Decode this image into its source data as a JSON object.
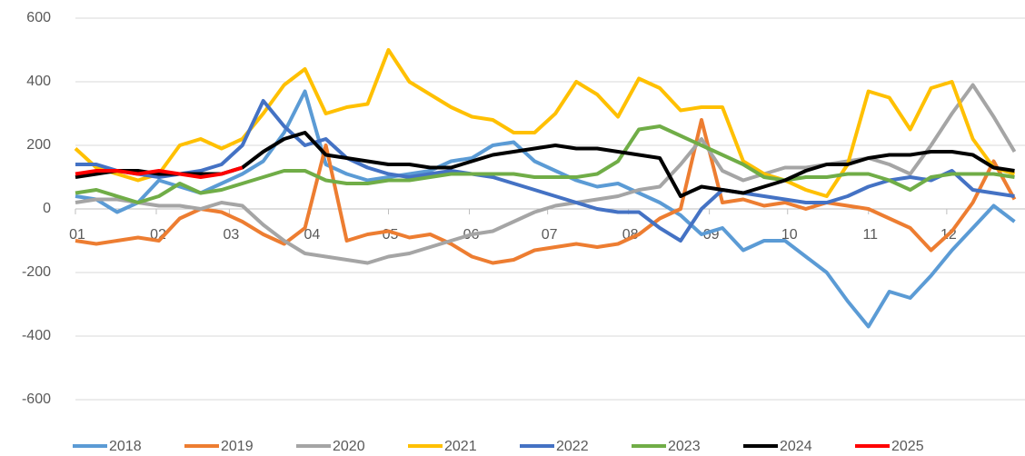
{
  "chart_data": {
    "type": "line",
    "x": [
      0,
      8,
      16,
      24,
      32,
      40,
      48,
      56,
      64,
      72,
      80,
      88,
      96,
      104,
      112,
      120,
      128,
      136,
      144,
      152,
      160,
      168,
      176,
      184,
      192,
      200,
      208,
      216,
      224,
      232,
      240,
      248,
      256,
      264,
      272,
      280,
      288,
      296,
      304,
      312,
      320,
      328,
      336,
      344,
      352,
      360
    ],
    "xlim": [
      0,
      364
    ],
    "xticks": [
      {
        "value": 0,
        "label": "01"
      },
      {
        "value": 31,
        "label": "02"
      },
      {
        "value": 59,
        "label": "03"
      },
      {
        "value": 90,
        "label": "04"
      },
      {
        "value": 120,
        "label": "05"
      },
      {
        "value": 151,
        "label": "06"
      },
      {
        "value": 181,
        "label": "07"
      },
      {
        "value": 212,
        "label": "08"
      },
      {
        "value": 243,
        "label": "09"
      },
      {
        "value": 273,
        "label": "10"
      },
      {
        "value": 304,
        "label": "11"
      },
      {
        "value": 334,
        "label": "12"
      }
    ],
    "ylim": [
      -600,
      600
    ],
    "yticks": [
      -600,
      -400,
      -200,
      0,
      200,
      400,
      600
    ],
    "grid": true,
    "series": [
      {
        "name": "2018",
        "color": "#5b9bd5",
        "values": [
          40,
          30,
          -10,
          20,
          90,
          70,
          50,
          80,
          110,
          150,
          240,
          370,
          140,
          110,
          90,
          100,
          110,
          120,
          150,
          160,
          200,
          210,
          150,
          120,
          90,
          70,
          80,
          50,
          20,
          -20,
          -80,
          -60,
          -130,
          -100,
          -100,
          -150,
          -200,
          -290,
          -370,
          -260,
          -280,
          -210,
          -130,
          -60,
          10,
          -40
        ]
      },
      {
        "name": "2019",
        "color": "#ed7d31",
        "values": [
          -100,
          -110,
          -100,
          -90,
          -100,
          -30,
          0,
          -10,
          -40,
          -80,
          -110,
          -60,
          200,
          -100,
          -80,
          -70,
          -90,
          -80,
          -110,
          -150,
          -170,
          -160,
          -130,
          -120,
          -110,
          -120,
          -110,
          -80,
          -30,
          0,
          280,
          20,
          30,
          10,
          20,
          0,
          20,
          10,
          0,
          -30,
          -60,
          -130,
          -70,
          20,
          150,
          30
        ]
      },
      {
        "name": "2020",
        "color": "#a5a5a5",
        "values": [
          20,
          30,
          30,
          20,
          10,
          10,
          0,
          20,
          10,
          -50,
          -100,
          -140,
          -150,
          -160,
          -170,
          -150,
          -140,
          -120,
          -100,
          -80,
          -70,
          -40,
          -10,
          10,
          20,
          30,
          40,
          60,
          70,
          140,
          220,
          120,
          90,
          110,
          130,
          130,
          140,
          150,
          160,
          140,
          110,
          200,
          300,
          390,
          290,
          180
        ]
      },
      {
        "name": "2021",
        "color": "#ffc000",
        "values": [
          190,
          130,
          110,
          90,
          110,
          200,
          220,
          190,
          220,
          300,
          390,
          440,
          300,
          320,
          330,
          500,
          400,
          360,
          320,
          290,
          280,
          240,
          240,
          300,
          400,
          360,
          290,
          410,
          380,
          310,
          320,
          320,
          150,
          110,
          90,
          60,
          40,
          140,
          370,
          350,
          250,
          380,
          400,
          220,
          130,
          110
        ]
      },
      {
        "name": "2022",
        "color": "#4472c4",
        "values": [
          140,
          140,
          120,
          110,
          100,
          110,
          120,
          140,
          200,
          340,
          260,
          200,
          220,
          160,
          130,
          110,
          100,
          110,
          120,
          110,
          100,
          80,
          60,
          40,
          20,
          0,
          -10,
          -10,
          -60,
          -100,
          0,
          60,
          50,
          40,
          30,
          20,
          20,
          40,
          70,
          90,
          100,
          90,
          120,
          60,
          50,
          40
        ]
      },
      {
        "name": "2023",
        "color": "#70ad47",
        "values": [
          50,
          60,
          40,
          20,
          40,
          80,
          50,
          60,
          80,
          100,
          120,
          120,
          90,
          80,
          80,
          90,
          90,
          100,
          110,
          110,
          110,
          110,
          100,
          100,
          100,
          110,
          150,
          250,
          260,
          230,
          200,
          170,
          140,
          100,
          90,
          100,
          100,
          110,
          110,
          90,
          60,
          100,
          110,
          110,
          110,
          100
        ]
      },
      {
        "name": "2024",
        "color": "#000000",
        "values": [
          100,
          110,
          120,
          120,
          110,
          110,
          110,
          110,
          130,
          180,
          220,
          240,
          170,
          160,
          150,
          140,
          140,
          130,
          130,
          150,
          170,
          180,
          190,
          200,
          190,
          190,
          180,
          170,
          160,
          40,
          70,
          60,
          50,
          70,
          90,
          120,
          140,
          140,
          160,
          170,
          170,
          180,
          180,
          170,
          130,
          120
        ]
      },
      {
        "name": "2025",
        "color": "#ff0000",
        "values": [
          110,
          120,
          120,
          110,
          120,
          110,
          100,
          110,
          130,
          null,
          null,
          null,
          null,
          null,
          null,
          null,
          null,
          null,
          null,
          null,
          null,
          null,
          null,
          null,
          null,
          null,
          null,
          null,
          null,
          null,
          null,
          null,
          null,
          null,
          null,
          null,
          null,
          null,
          null,
          null,
          null,
          null,
          null,
          null,
          null,
          null
        ]
      }
    ]
  }
}
